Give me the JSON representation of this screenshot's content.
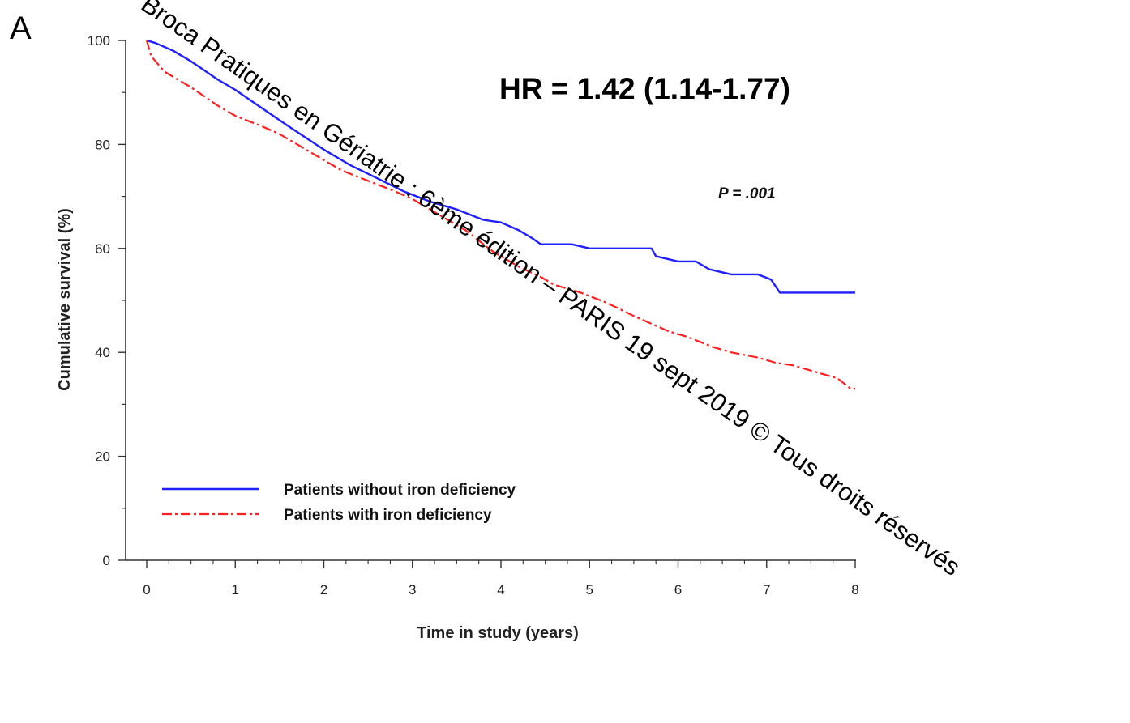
{
  "panel_label": "A",
  "hr_annotation": "HR = 1.42 (1.14-1.77)",
  "p_value": "P = .001",
  "watermark": "Broca  Pratiques en Gériatrie : 6ème édition – PARIS 19 sept 2019  © Tous droits réservés",
  "chart_data": {
    "type": "line",
    "xlabel": "Time in study (years)",
    "ylabel": "Cumulative survival (%)",
    "xlim": [
      0,
      8
    ],
    "ylim": [
      0,
      100
    ],
    "xticks": [
      "0",
      "1",
      "2",
      "3",
      "4",
      "5",
      "6",
      "7",
      "8"
    ],
    "yticks": [
      "0",
      "20",
      "40",
      "60",
      "80",
      "100"
    ],
    "grid": false,
    "legend_position": "bottom-left",
    "series": [
      {
        "name": "Patients without iron deficiency",
        "color": "#1f1fff",
        "style": "solid",
        "x": [
          0,
          0.1,
          0.3,
          0.5,
          0.8,
          1.0,
          1.3,
          1.6,
          2.0,
          2.3,
          2.6,
          2.9,
          3.2,
          3.5,
          3.8,
          4.0,
          4.2,
          4.35,
          4.45,
          4.8,
          5.0,
          5.3,
          5.7,
          5.75,
          6.0,
          6.2,
          6.35,
          6.6,
          6.9,
          7.05,
          7.15,
          7.5,
          8.0
        ],
        "y": [
          100,
          99.5,
          98,
          96,
          92.5,
          90.5,
          87,
          83.5,
          79,
          76,
          73.5,
          71,
          69,
          67.5,
          65.5,
          65,
          63.5,
          62,
          60.8,
          60.8,
          60,
          60,
          60,
          58.5,
          57.5,
          57.5,
          56,
          55,
          55,
          54,
          51.5,
          51.5,
          51.5
        ]
      },
      {
        "name": "Patients with iron deficiency",
        "color": "#ff1f1f",
        "style": "dashdot",
        "x": [
          0,
          0.05,
          0.2,
          0.5,
          0.8,
          1.0,
          1.3,
          1.5,
          1.8,
          2.0,
          2.2,
          2.5,
          2.8,
          3.0,
          3.3,
          3.6,
          3.9,
          4.2,
          4.45,
          4.6,
          4.9,
          5.2,
          5.5,
          5.7,
          5.9,
          6.1,
          6.4,
          6.6,
          6.9,
          7.1,
          7.3,
          7.6,
          7.8,
          7.95,
          8.0
        ],
        "y": [
          100,
          97,
          94,
          91,
          87.5,
          85.5,
          83.5,
          82,
          79,
          77,
          75,
          73,
          71,
          69.5,
          66.5,
          63.5,
          59.5,
          56.5,
          54.5,
          53,
          51.5,
          49.5,
          47,
          45.5,
          44,
          43,
          41,
          40,
          39,
          38,
          37.5,
          36,
          35,
          33,
          33
        ]
      }
    ]
  }
}
